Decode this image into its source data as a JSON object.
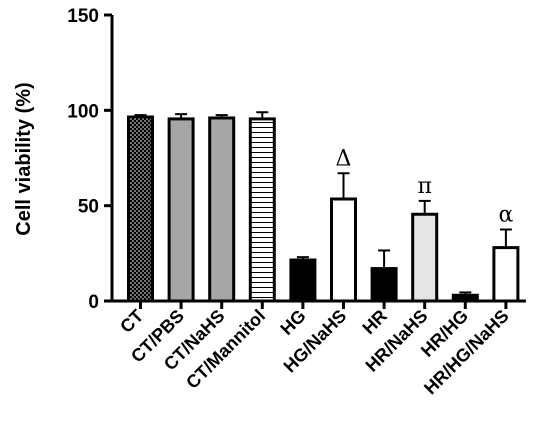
{
  "chart_data": {
    "type": "bar",
    "title": "",
    "xlabel": "",
    "ylabel": "Cell viability (%)",
    "ylim": [
      0,
      150
    ],
    "yticks": [
      "0",
      "50",
      "100",
      "150"
    ],
    "grid": false,
    "categories": [
      "CT",
      "CT/PBS",
      "CT/NaHS",
      "CT/Mannitol",
      "HG",
      "HG/NaHS",
      "HR",
      "HR/NaHS",
      "HR/HG",
      "HR/HG/NaHS"
    ],
    "values": [
      96.5,
      95.5,
      96,
      95.5,
      21.5,
      53.5,
      17,
      45.5,
      3,
      28
    ],
    "errors": [
      1,
      2.5,
      1.5,
      3.5,
      1.5,
      13.5,
      9.5,
      7,
      1.5,
      9.5
    ],
    "fills": [
      "dotted",
      "gray",
      "gray",
      "horizontal-lines",
      "black",
      "white",
      "black",
      "light-gray",
      "black",
      "white"
    ],
    "annotations": [
      {
        "category": "HG/NaHS",
        "text": "Δ"
      },
      {
        "category": "HR/NaHS",
        "text": "π"
      },
      {
        "category": "HR/HG/NaHS",
        "text": "α"
      }
    ],
    "colors": {
      "gray": "#a6a6a6",
      "light_gray": "#e6e6e6",
      "black": "#000000",
      "white": "#ffffff"
    }
  }
}
